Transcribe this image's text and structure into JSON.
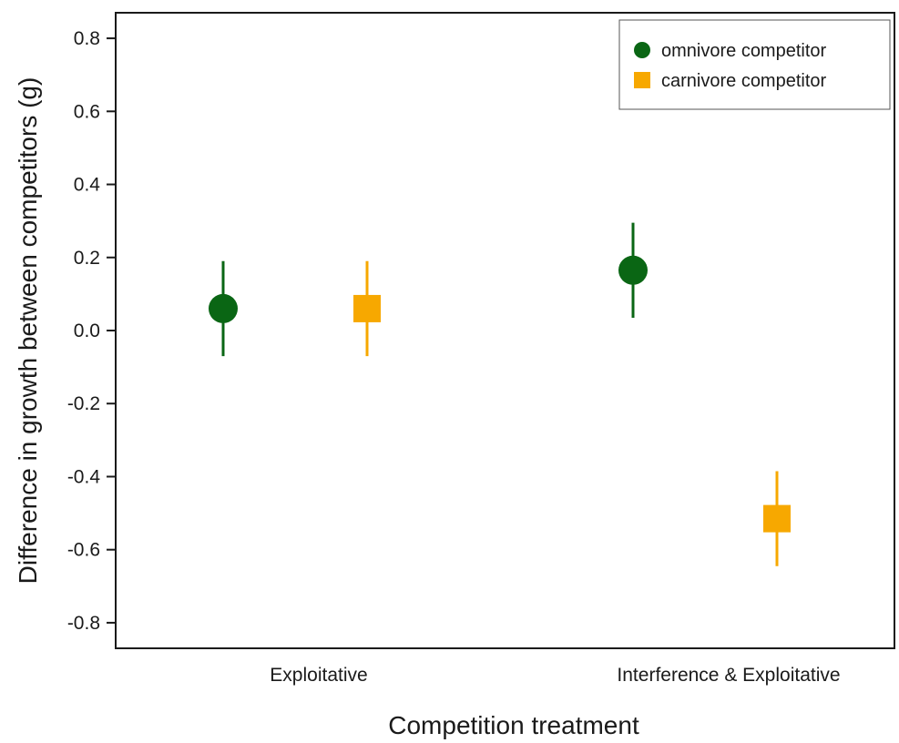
{
  "chart_data": {
    "type": "scatter",
    "xlabel": "Competition treatment",
    "ylabel": "Difference in growth between competitors (g)",
    "categories": [
      "Exploitative",
      "Interference & Exploitative"
    ],
    "ylim": [
      -0.87,
      0.87
    ],
    "yticks": [
      "-0.8",
      "-0.6",
      "-0.4",
      "-0.2",
      "0.0",
      "0.2",
      "0.4",
      "0.6",
      "0.8"
    ],
    "grid": false,
    "legend_position": "top-right",
    "series": [
      {
        "name": "omnivore competitor",
        "marker": "circle",
        "color": "#0a6614",
        "values": [
          0.06,
          0.165
        ],
        "lower": [
          -0.07,
          0.035
        ],
        "upper": [
          0.19,
          0.295
        ]
      },
      {
        "name": "carnivore competitor",
        "marker": "square",
        "color": "#f7a800",
        "values": [
          0.06,
          -0.515
        ],
        "lower": [
          -0.07,
          -0.645
        ],
        "upper": [
          0.19,
          -0.385
        ]
      }
    ]
  }
}
